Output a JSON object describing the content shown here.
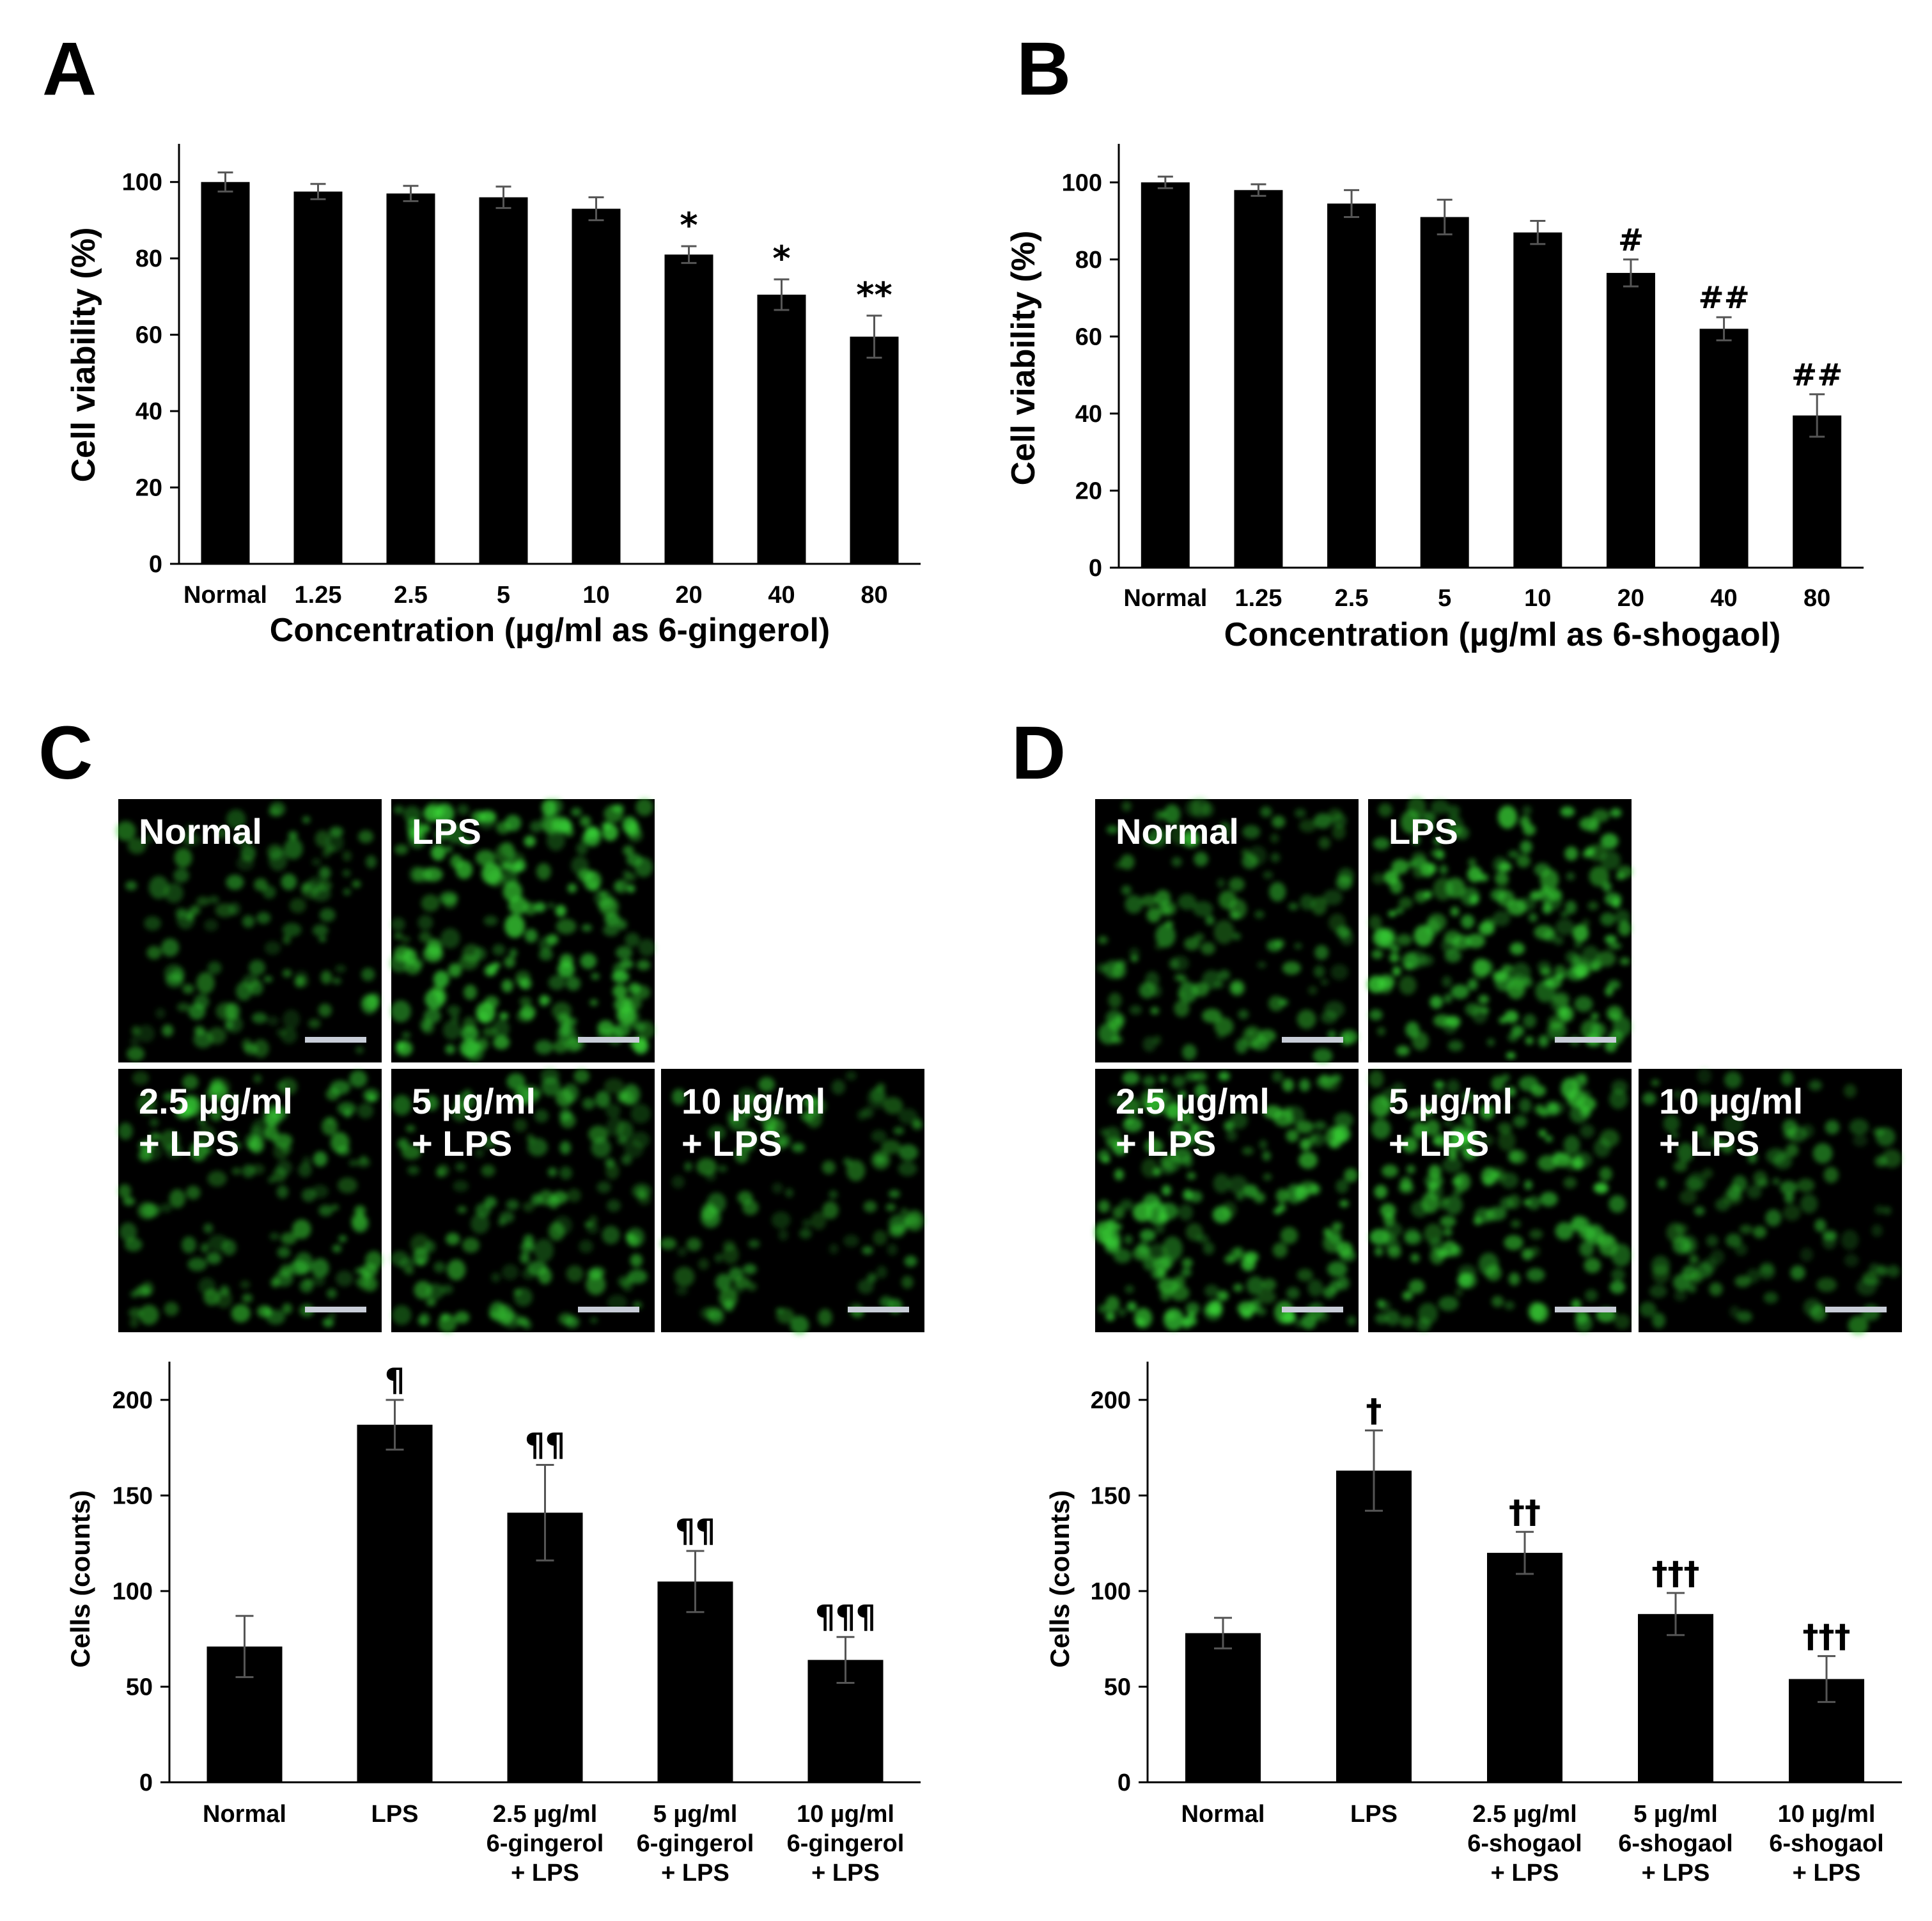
{
  "panels": {
    "A": "A",
    "B": "B",
    "C": "C",
    "D": "D"
  },
  "chart_data": [
    {
      "panel": "A",
      "type": "bar",
      "xlabel": "Concentration (µg/ml as 6-gingerol)",
      "ylabel": "Cell viability (%)",
      "ylim": [
        0,
        110
      ],
      "yticks": [
        0,
        20,
        40,
        60,
        80,
        100
      ],
      "categories": [
        "Normal",
        "1.25",
        "2.5",
        "5",
        "10",
        "20",
        "40",
        "80"
      ],
      "values": [
        100,
        97.5,
        97,
        96,
        93,
        81,
        70.5,
        59.5
      ],
      "errors": [
        2.5,
        2,
        2,
        2.8,
        3,
        2.2,
        4,
        5.5
      ],
      "annotations": [
        "",
        "",
        "",
        "",
        "",
        "*",
        "*",
        "**"
      ],
      "grid": false,
      "bar_color": "#000000"
    },
    {
      "panel": "B",
      "type": "bar",
      "xlabel": "Concentration (µg/ml as 6-shogaol)",
      "ylabel": "Cell viability (%)",
      "ylim": [
        0,
        110
      ],
      "yticks": [
        0,
        20,
        40,
        60,
        80,
        100
      ],
      "categories": [
        "Normal",
        "1.25",
        "2.5",
        "5",
        "10",
        "20",
        "40",
        "80"
      ],
      "values": [
        100,
        98,
        94.5,
        91,
        87,
        76.5,
        62,
        39.5
      ],
      "errors": [
        1.5,
        1.5,
        3.5,
        4.5,
        3,
        3.5,
        3,
        5.5
      ],
      "annotations": [
        "",
        "",
        "",
        "",
        "",
        "#",
        "##",
        "##"
      ],
      "grid": false,
      "bar_color": "#000000"
    },
    {
      "panel": "C",
      "type": "bar",
      "xlabel": "",
      "ylabel": "Cells (counts)",
      "ylim": [
        0,
        220
      ],
      "yticks": [
        0,
        50,
        100,
        150,
        200
      ],
      "categories": [
        [
          "Normal"
        ],
        [
          "LPS"
        ],
        [
          "2.5 µg/ml",
          "6-gingerol",
          "+ LPS"
        ],
        [
          "5 µg/ml",
          "6-gingerol",
          "+ LPS"
        ],
        [
          "10 µg/ml",
          "6-gingerol",
          "+ LPS"
        ]
      ],
      "values": [
        71,
        187,
        141,
        105,
        64
      ],
      "errors": [
        16,
        13,
        25,
        16,
        12
      ],
      "annotations": [
        "",
        "¶",
        "¶¶",
        "¶¶",
        "¶¶¶"
      ],
      "grid": false,
      "bar_color": "#000000"
    },
    {
      "panel": "D",
      "type": "bar",
      "xlabel": "",
      "ylabel": "Cells (counts)",
      "ylim": [
        0,
        220
      ],
      "yticks": [
        0,
        50,
        100,
        150,
        200
      ],
      "categories": [
        [
          "Normal"
        ],
        [
          "LPS"
        ],
        [
          "2.5 µg/ml",
          "6-shogaol",
          "+ LPS"
        ],
        [
          "5 µg/ml",
          "6-shogaol",
          "+ LPS"
        ],
        [
          "10 µg/ml",
          "6-shogaol",
          "+ LPS"
        ]
      ],
      "values": [
        78,
        163,
        120,
        88,
        54
      ],
      "errors": [
        8,
        21,
        11,
        11,
        12
      ],
      "annotations": [
        "",
        "†",
        "††",
        "†††",
        "†††"
      ],
      "grid": false,
      "bar_color": "#000000"
    }
  ],
  "micrographs": {
    "C": {
      "labels": [
        [
          "Normal"
        ],
        [
          "LPS"
        ],
        [
          "2.5 µg/ml",
          "+ LPS"
        ],
        [
          "5 µg/ml",
          "+ LPS"
        ],
        [
          "10 µg/ml",
          "+ LPS"
        ]
      ],
      "density": [
        0.35,
        0.9,
        0.5,
        0.45,
        0.35
      ]
    },
    "D": {
      "labels": [
        [
          "Normal"
        ],
        [
          "LPS"
        ],
        [
          "2.5 µg/ml",
          "+ LPS"
        ],
        [
          "5 µg/ml",
          "+ LPS"
        ],
        [
          "10 µg/ml",
          "+ LPS"
        ]
      ],
      "density": [
        0.45,
        0.9,
        0.8,
        0.75,
        0.3
      ]
    },
    "cell_color": "#39d436",
    "scale_bar_color": "#c8cdd8"
  }
}
